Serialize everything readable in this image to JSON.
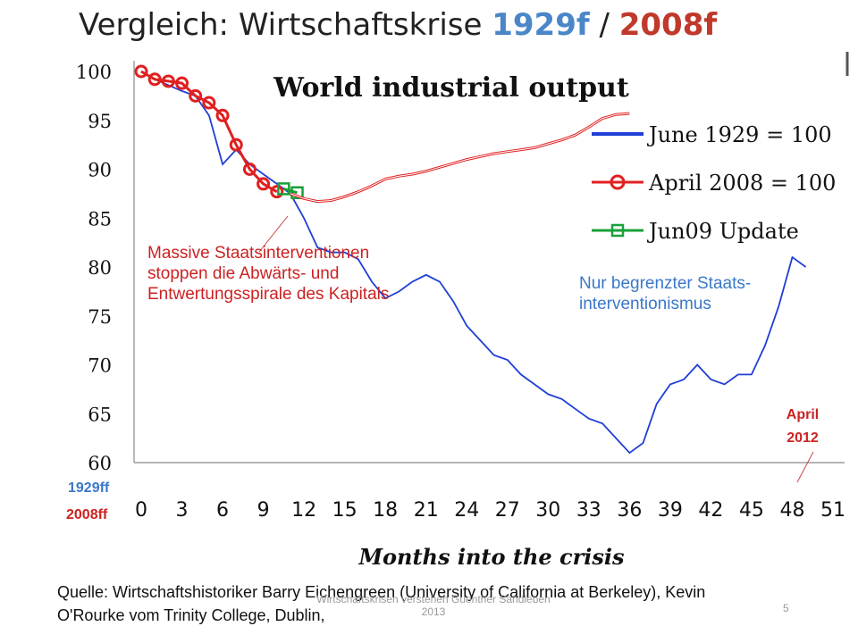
{
  "slide": {
    "title_prefix": "Vergleich: Wirtschaftskrise ",
    "title_year1": "1929f",
    "title_sep": " / ",
    "title_year2": "2008f",
    "annotation_left": "Massive Staatsinterventionen stoppen die Abwärts- und Entwertungsspirale des Kapitals",
    "annotation_right": "Nur begrenzter Staats-interventionismus",
    "april_label": "April",
    "year_label": "2012",
    "axis_note_1929": "1929ff",
    "axis_note_2008": "2008ff",
    "source": "Quelle: Wirtschaftshistoriker Barry Eichengreen (University of California at Berkeley), Kevin O'Rourke vom Trinity College, Dublin,",
    "footer": "Wirtschaftskrisen verstehen Guenther Sandleben 2013",
    "page_number": "5"
  },
  "colors": {
    "series_1929": "#1f3fd6",
    "series_2008": "#e02020",
    "series_update": "#18a03a",
    "title_1929": "#4a86c8",
    "title_2008": "#c0392b"
  },
  "chart_data": {
    "type": "line",
    "title": "World industrial output",
    "xlabel": "Months into the crisis",
    "ylabel": "",
    "xlim": [
      0,
      51
    ],
    "ylim": [
      60,
      100
    ],
    "xticks": [
      0,
      3,
      6,
      9,
      12,
      15,
      18,
      21,
      24,
      27,
      30,
      33,
      36,
      39,
      42,
      45,
      48,
      51
    ],
    "yticks": [
      60,
      65,
      70,
      75,
      80,
      85,
      90,
      95,
      100
    ],
    "legend": [
      "June 1929 = 100",
      "April 2008 = 100",
      "Jun09 Update"
    ],
    "legend_position": "top-right",
    "series": [
      {
        "name": "June 1929 = 100",
        "x": [
          0,
          1,
          2,
          3,
          4,
          5,
          6,
          7,
          8,
          9,
          10,
          11,
          12,
          13,
          14,
          15,
          16,
          17,
          18,
          19,
          20,
          21,
          22,
          23,
          24,
          25,
          26,
          27,
          28,
          29,
          30,
          31,
          32,
          33,
          34,
          35,
          36,
          37,
          38,
          39,
          40,
          41,
          42,
          43,
          44,
          45,
          46,
          47,
          48,
          49
        ],
        "values": [
          100,
          99.2,
          98.6,
          98,
          97.5,
          95.5,
          90.5,
          92,
          90.5,
          89.5,
          88.5,
          87.5,
          85,
          82,
          81.5,
          81.5,
          80.8,
          78.5,
          76.8,
          77.5,
          78.5,
          79.2,
          78.5,
          76.5,
          74,
          72.5,
          71,
          70.5,
          69,
          68,
          67,
          66.5,
          65.5,
          64.5,
          64,
          62.5,
          61,
          62,
          66,
          68,
          68.5,
          70,
          68.5,
          68,
          69,
          69,
          72,
          76,
          81,
          80
        ]
      },
      {
        "name": "April 2008 = 100",
        "x": [
          0,
          1,
          2,
          3,
          4,
          5,
          6,
          7,
          8,
          9,
          10
        ],
        "values": [
          100,
          99.2,
          99,
          98.8,
          97.5,
          96.8,
          95.5,
          92.5,
          90,
          88.5,
          87.7
        ]
      },
      {
        "name": "Jun09 Update",
        "x": [
          10.5,
          11.5
        ],
        "values": [
          88,
          87.6
        ]
      },
      {
        "name": "",
        "x": [
          11,
          12,
          13,
          14,
          15,
          16,
          17,
          18,
          19,
          20,
          21,
          22,
          23,
          24,
          25,
          26,
          27,
          28,
          29,
          30,
          31,
          32,
          33,
          34,
          35,
          36
        ],
        "values": [
          87.5,
          87,
          86.7,
          86.8,
          87.2,
          87.7,
          88.3,
          89,
          89.3,
          89.5,
          89.8,
          90.2,
          90.6,
          91,
          91.3,
          91.6,
          91.8,
          92,
          92.2,
          92.6,
          93,
          93.5,
          94.3,
          95.2,
          95.6,
          95.7
        ]
      }
    ]
  }
}
